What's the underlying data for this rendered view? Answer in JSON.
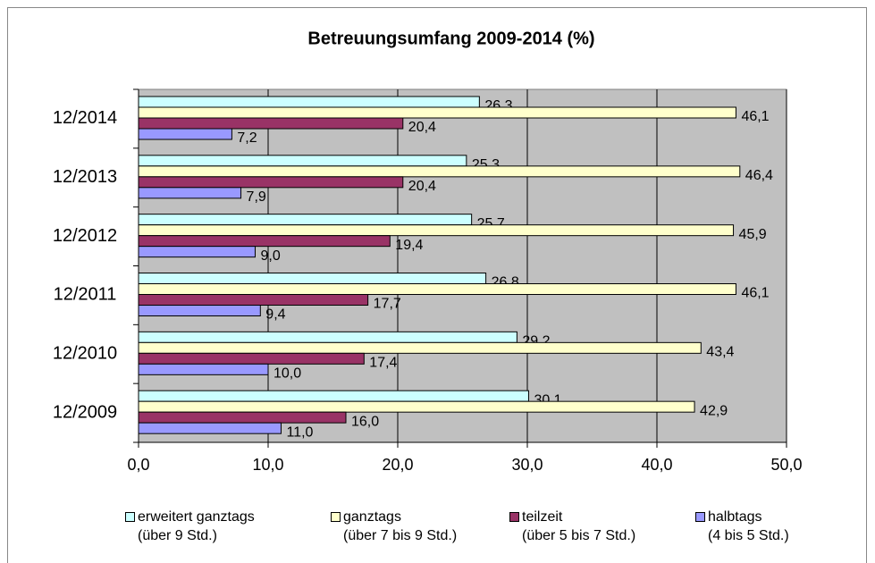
{
  "chart_data": {
    "type": "hbar",
    "title": "Betreuungsumfang 2009-2014 (%)",
    "categories": [
      "12/2014",
      "12/2013",
      "12/2012",
      "12/2011",
      "12/2010",
      "12/2009"
    ],
    "series": [
      {
        "name": "erweitert ganztags\n(über 9 Std.)",
        "color": "#ccffff",
        "values": [
          26.3,
          25.3,
          25.7,
          26.8,
          29.2,
          30.1
        ],
        "value_labels": [
          "26,3",
          "25,3",
          "25,7",
          "26,8",
          "29,2",
          "30,1"
        ]
      },
      {
        "name": "ganztags\n(über 7 bis 9 Std.)",
        "color": "#ffffcc",
        "values": [
          46.1,
          46.4,
          45.9,
          46.1,
          43.4,
          42.9
        ],
        "value_labels": [
          "46,1",
          "46,4",
          "45,9",
          "46,1",
          "43,4",
          "42,9"
        ]
      },
      {
        "name": "teilzeit\n(über 5 bis 7 Std.)",
        "color": "#993366",
        "values": [
          20.4,
          20.4,
          19.4,
          17.7,
          17.4,
          16.0
        ],
        "value_labels": [
          "20,4",
          "20,4",
          "19,4",
          "17,7",
          "17,4",
          "16,0"
        ]
      },
      {
        "name": "halbtags\n(4 bis 5 Std.)",
        "color": "#9999ff",
        "values": [
          7.2,
          7.9,
          9.0,
          9.4,
          10.0,
          11.0
        ],
        "value_labels": [
          "7,2",
          "7,9",
          "9,0",
          "9,4",
          "10,0",
          "11,0"
        ]
      }
    ],
    "xlim": [
      0,
      50
    ],
    "xticks": [
      {
        "value": 0,
        "label": "0,0"
      },
      {
        "value": 10,
        "label": "10,0"
      },
      {
        "value": 20,
        "label": "20,0"
      },
      {
        "value": 30,
        "label": "30,0"
      },
      {
        "value": 40,
        "label": "40,0"
      },
      {
        "value": 50,
        "label": "50,0"
      }
    ],
    "grid": true,
    "plot_background": "#c0c0c0"
  }
}
